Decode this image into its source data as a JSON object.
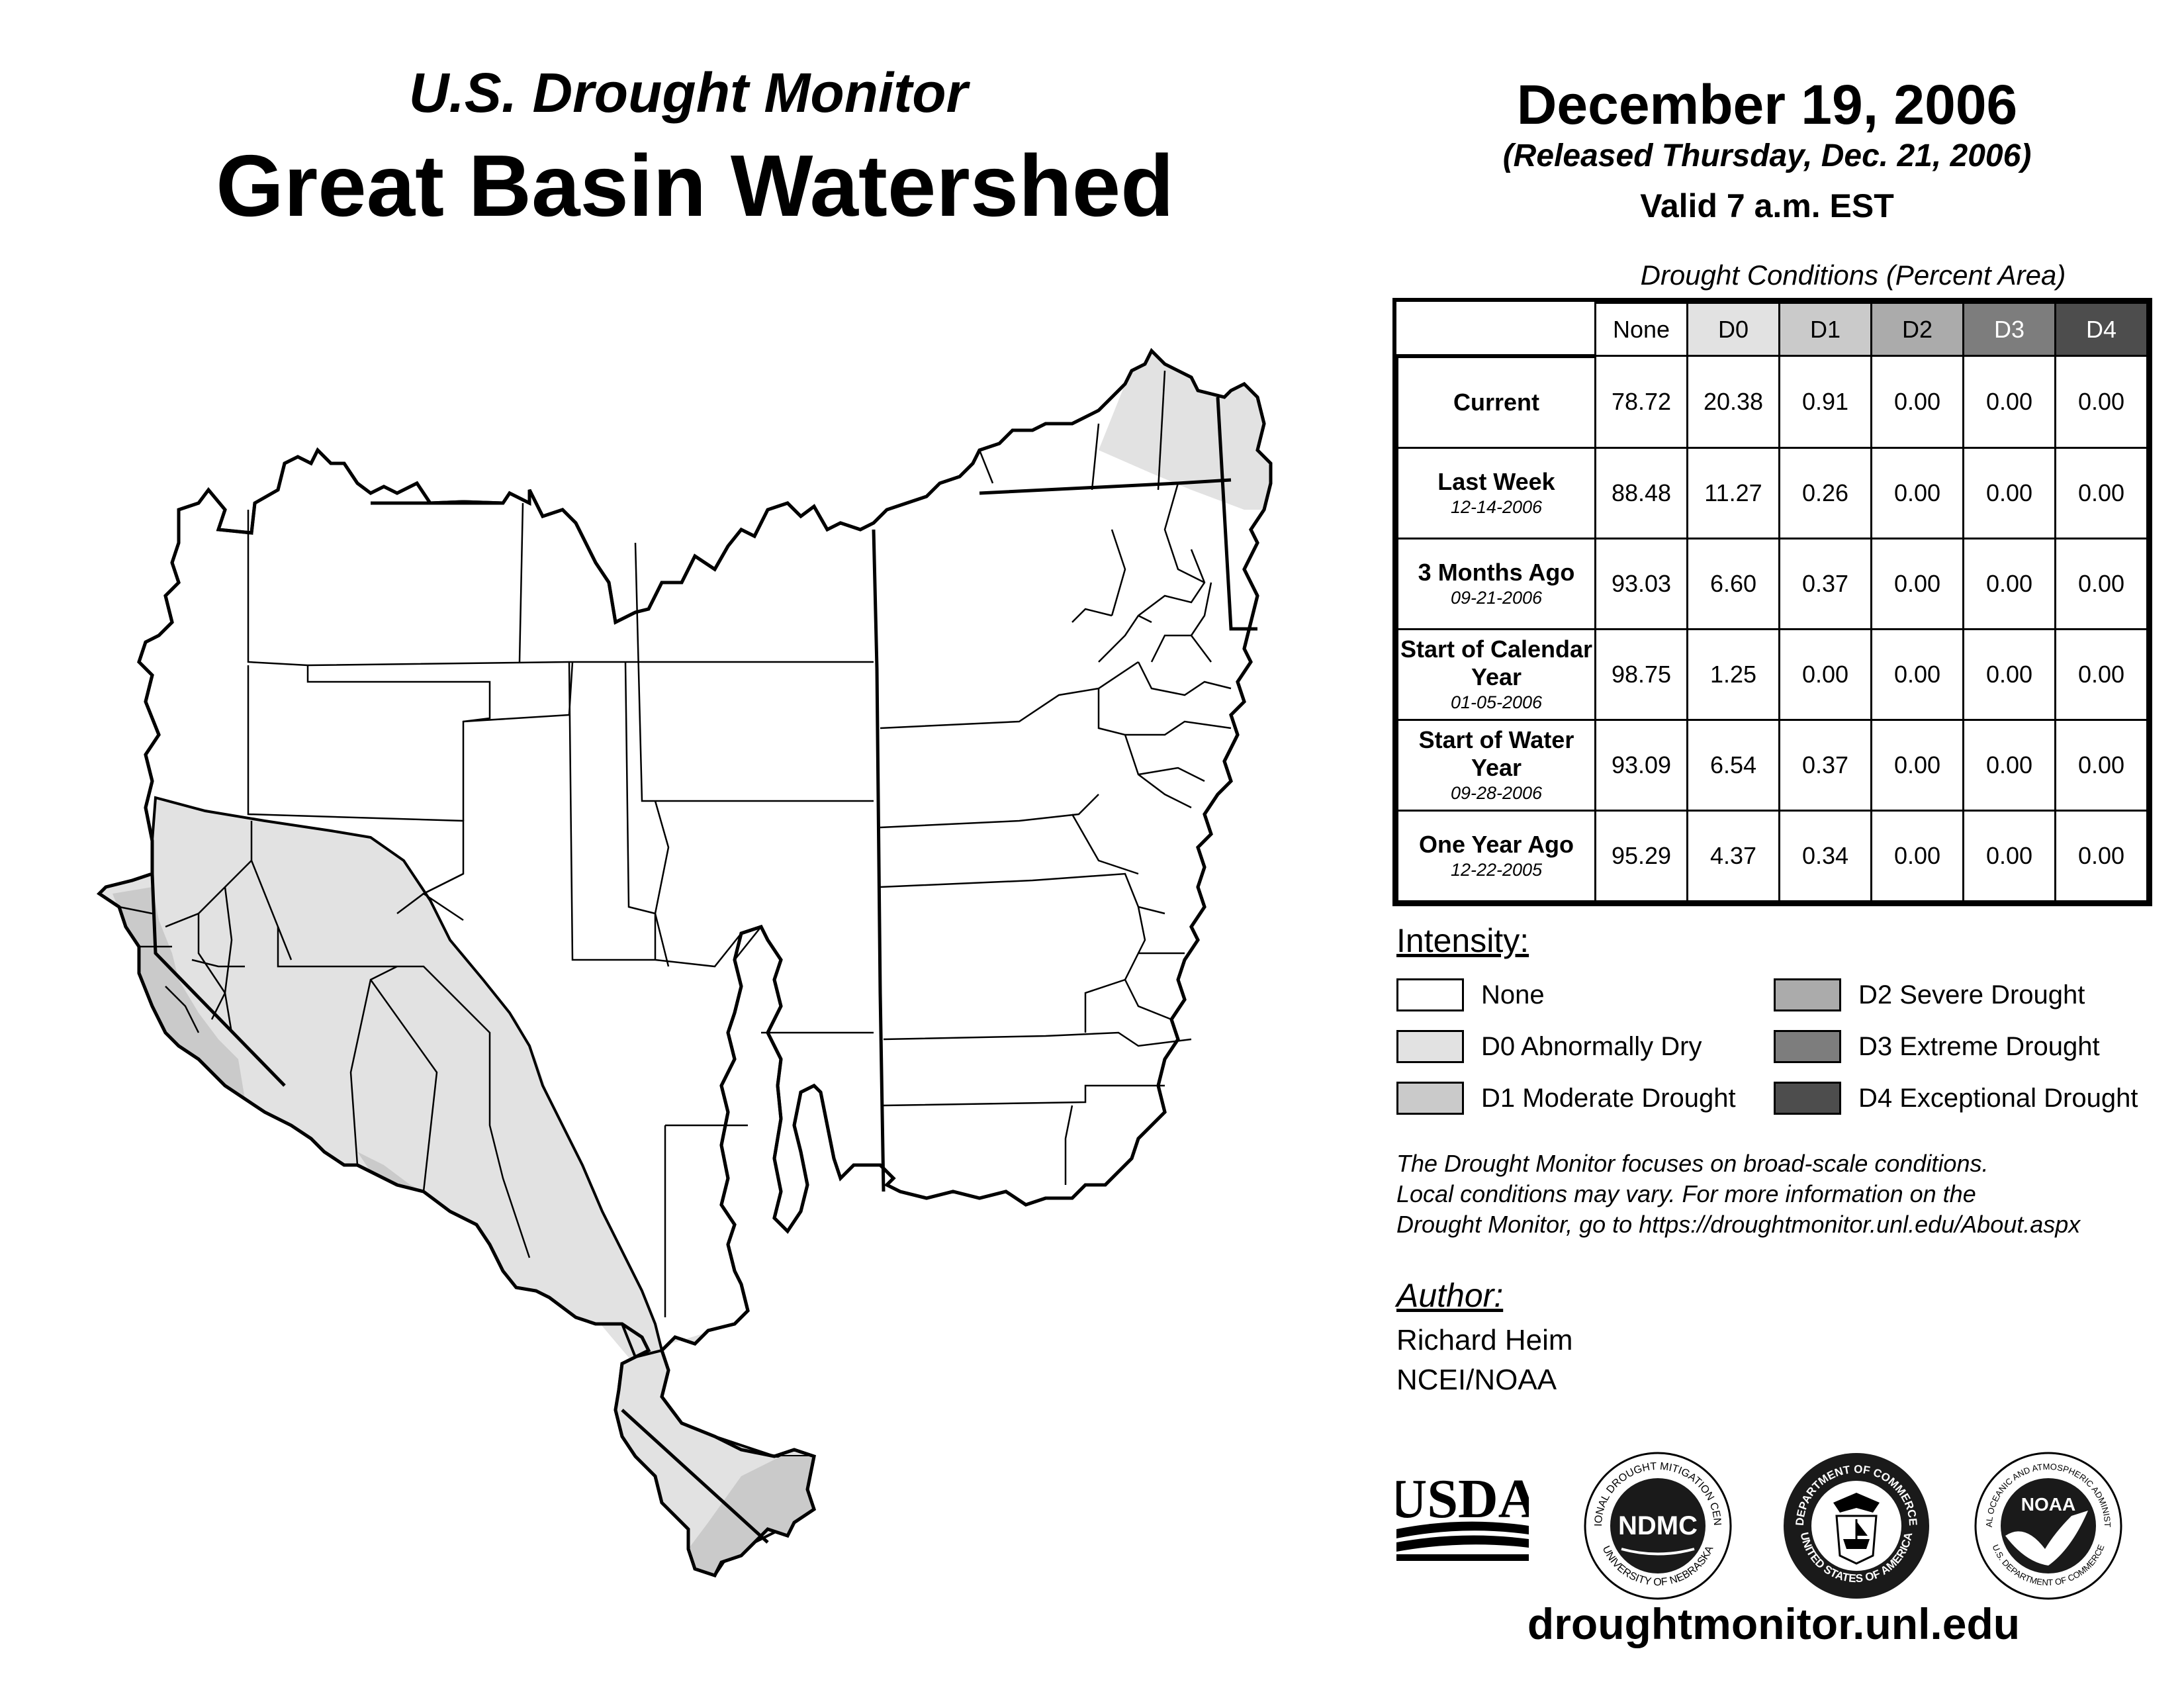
{
  "header": {
    "title_small": "U.S. Drought Monitor",
    "title_big": "Great Basin Watershed",
    "date": "December 19, 2006",
    "released": "(Released Thursday, Dec. 21, 2006)",
    "valid": "Valid 7 a.m. EST"
  },
  "table": {
    "caption": "Drought Conditions (Percent Area)",
    "columns": [
      "None",
      "D0",
      "D1",
      "D2",
      "D3",
      "D4"
    ],
    "rows": [
      {
        "label": "Current",
        "date": "",
        "values": [
          "78.72",
          "20.38",
          "0.91",
          "0.00",
          "0.00",
          "0.00"
        ]
      },
      {
        "label": "Last Week",
        "date": "12-14-2006",
        "values": [
          "88.48",
          "11.27",
          "0.26",
          "0.00",
          "0.00",
          "0.00"
        ]
      },
      {
        "label": "3 Months Ago",
        "date": "09-21-2006",
        "values": [
          "93.03",
          "6.60",
          "0.37",
          "0.00",
          "0.00",
          "0.00"
        ]
      },
      {
        "label": "Start of Calendar Year",
        "date": "01-05-2006",
        "values": [
          "98.75",
          "1.25",
          "0.00",
          "0.00",
          "0.00",
          "0.00"
        ]
      },
      {
        "label": "Start of Water Year",
        "date": "09-28-2006",
        "values": [
          "93.09",
          "6.54",
          "0.37",
          "0.00",
          "0.00",
          "0.00"
        ]
      },
      {
        "label": "One Year Ago",
        "date": "12-22-2005",
        "values": [
          "95.29",
          "4.37",
          "0.34",
          "0.00",
          "0.00",
          "0.00"
        ]
      }
    ]
  },
  "legend": {
    "title": "Intensity:",
    "items": [
      {
        "label": "None",
        "color": "#ffffff"
      },
      {
        "label": "D0 Abnormally Dry",
        "color": "#e2e2e2"
      },
      {
        "label": "D1 Moderate Drought",
        "color": "#cacaca"
      },
      {
        "label": "D2 Severe Drought",
        "color": "#ababab"
      },
      {
        "label": "D3 Extreme Drought",
        "color": "#7d7d7d"
      },
      {
        "label": "D4 Exceptional Drought",
        "color": "#4d4d4d"
      }
    ]
  },
  "colors": {
    "header_none": "#ffffff",
    "header_d0": "#e2e2e2",
    "header_d1": "#cacaca",
    "header_d2": "#ababab",
    "header_d3": "#7d7d7d",
    "header_d4": "#4d4d4d"
  },
  "note": {
    "line1": "The Drought Monitor focuses on broad-scale conditions.",
    "line2": "Local conditions may vary. For more information on the",
    "line3": "Drought Monitor, go to https://droughtmonitor.unl.edu/About.aspx"
  },
  "author": {
    "title": "Author:",
    "name": "Richard Heim",
    "org": "NCEI/NOAA"
  },
  "logos": {
    "usda": "USDA",
    "ndmc": "NDMC",
    "ndmc_ring_top": "NATIONAL DROUGHT MITIGATION CENTER",
    "ndmc_ring_bottom": "UNIVERSITY OF NEBRASKA",
    "doc_ring_top": "DEPARTMENT OF COMMERCE",
    "doc_ring_bottom": "UNITED STATES OF AMERICA",
    "noaa": "NOAA",
    "noaa_ring_top": "NATIONAL OCEANIC AND ATMOSPHERIC ADMINISTRATION",
    "noaa_ring_bottom": "U.S. DEPARTMENT OF COMMERCE"
  },
  "site": "droughtmonitor.unl.edu",
  "map": {
    "region_name": "Great Basin Watershed",
    "fill_none": "#ffffff",
    "fill_d0": "#e2e2e2",
    "fill_d1": "#cacaca"
  }
}
